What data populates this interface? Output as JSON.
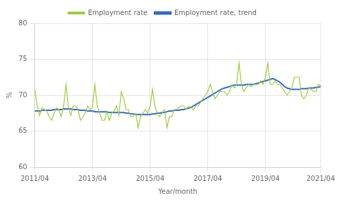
{
  "chart_data": {
    "type": "line",
    "xlabel": "Year/month",
    "ylabel": "%",
    "categories": [
      "2011/04",
      null,
      null,
      null,
      null,
      null,
      null,
      null,
      null,
      null,
      null,
      null,
      null,
      null,
      null,
      null,
      null,
      null,
      null,
      null,
      null,
      null,
      null,
      null,
      "2013/04",
      null,
      null,
      null,
      null,
      null,
      null,
      null,
      null,
      null,
      null,
      null,
      null,
      null,
      null,
      null,
      null,
      null,
      null,
      null,
      null,
      null,
      null,
      null,
      "2015/04",
      null,
      null,
      null,
      null,
      null,
      null,
      null,
      null,
      null,
      null,
      null,
      null,
      null,
      null,
      null,
      null,
      null,
      null,
      null,
      null,
      null,
      null,
      null,
      "2017/04",
      null,
      null,
      null,
      null,
      null,
      null,
      null,
      null,
      null,
      null,
      null,
      null,
      null,
      null,
      null,
      null,
      null,
      null,
      null,
      null,
      null,
      null,
      null,
      "2019/04",
      null,
      null,
      null,
      null,
      null,
      null,
      null,
      null,
      null,
      null,
      null,
      null,
      null,
      null,
      null,
      null,
      null,
      null,
      null,
      null,
      null,
      null,
      "2021/04"
    ],
    "series": [
      {
        "name": "Employment rate",
        "color": "#99cc33",
        "values": [
          70.8,
          68.5,
          67.2,
          68.3,
          68.0,
          67.8,
          67.0,
          66.5,
          67.5,
          68.2,
          68.0,
          67.0,
          68.5,
          71.5,
          68.2,
          67.2,
          68.5,
          68.5,
          68.0,
          66.5,
          67.0,
          67.5,
          68.5,
          68.0,
          68.3,
          71.5,
          68.5,
          67.5,
          66.5,
          66.5,
          67.8,
          66.5,
          67.5,
          67.8,
          68.5,
          67.2,
          70.5,
          69.5,
          68.0,
          68.0,
          67.0,
          67.0,
          67.5,
          65.5,
          67.0,
          67.5,
          68.0,
          67.5,
          68.5,
          70.8,
          68.5,
          67.5,
          67.0,
          67.5,
          68.0,
          65.5,
          67.0,
          67.0,
          68.0,
          68.0,
          68.3,
          68.5,
          68.5,
          68.0,
          68.5,
          68.3,
          68.0,
          68.5,
          68.5,
          69.0,
          69.5,
          70.0,
          70.5,
          71.5,
          70.5,
          69.5,
          70.0,
          70.5,
          70.5,
          70.5,
          70.0,
          70.5,
          71.5,
          71.0,
          71.5,
          74.5,
          71.5,
          70.5,
          71.0,
          71.5,
          71.2,
          71.5,
          71.5,
          71.5,
          72.0,
          71.5,
          72.5,
          74.5,
          71.5,
          71.5,
          72.0,
          71.5,
          71.5,
          71.0,
          70.5,
          70.0,
          70.5,
          71.0,
          72.5,
          72.5,
          72.5,
          70.0,
          69.5,
          70.0,
          71.0,
          70.8,
          70.5,
          70.5,
          71.5,
          71.3
        ]
      },
      {
        "name": "Employment rate, trend",
        "color": "#3366cc",
        "values": [
          67.8,
          67.8,
          67.8,
          67.9,
          67.9,
          67.9,
          67.9,
          67.9,
          68.0,
          68.0,
          68.0,
          68.0,
          68.1,
          68.1,
          68.1,
          68.1,
          68.0,
          68.0,
          68.0,
          67.9,
          67.9,
          67.9,
          67.8,
          67.8,
          67.8,
          67.7,
          67.7,
          67.7,
          67.7,
          67.7,
          67.7,
          67.6,
          67.6,
          67.6,
          67.6,
          67.6,
          67.6,
          67.6,
          67.5,
          67.5,
          67.4,
          67.4,
          67.3,
          67.3,
          67.3,
          67.3,
          67.3,
          67.3,
          67.3,
          67.4,
          67.4,
          67.5,
          67.5,
          67.6,
          67.6,
          67.7,
          67.8,
          67.8,
          67.9,
          67.9,
          67.9,
          68.0,
          68.0,
          68.1,
          68.2,
          68.3,
          68.5,
          68.7,
          68.9,
          69.1,
          69.3,
          69.5,
          69.7,
          69.9,
          70.1,
          70.3,
          70.5,
          70.7,
          70.9,
          71.0,
          71.1,
          71.2,
          71.3,
          71.4,
          71.4,
          71.4,
          71.4,
          71.4,
          71.5,
          71.5,
          71.5,
          71.5,
          71.6,
          71.7,
          71.8,
          71.9,
          72.0,
          72.1,
          72.2,
          72.3,
          72.2,
          72.0,
          71.8,
          71.5,
          71.2,
          71.0,
          70.9,
          70.8,
          70.8,
          70.8,
          70.8,
          70.9,
          70.9,
          70.9,
          71.0,
          71.0,
          71.0,
          71.1,
          71.1,
          71.2
        ]
      }
    ],
    "ylim": [
      60,
      80
    ],
    "yticks": [
      60,
      65,
      70,
      75,
      80
    ],
    "grid": true,
    "legend": "top"
  }
}
